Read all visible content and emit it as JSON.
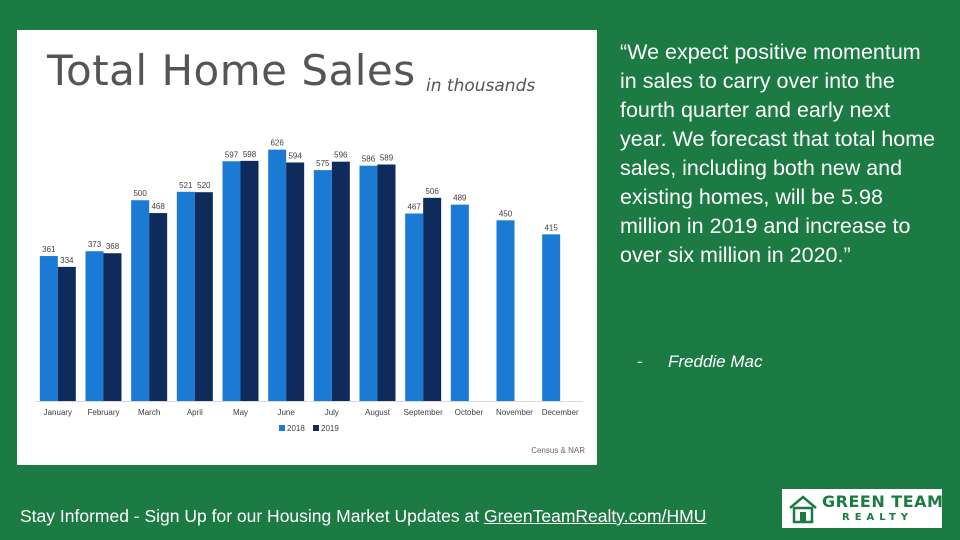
{
  "chart_data": {
    "type": "bar",
    "title": "Total Home Sales",
    "subtitle": "in thousands",
    "categories": [
      "January",
      "February",
      "March",
      "April",
      "May",
      "June",
      "July",
      "August",
      "September",
      "October",
      "November",
      "December"
    ],
    "series": [
      {
        "name": "2018",
        "color": "#1a7ad4",
        "values": [
          361,
          373,
          500,
          521,
          597,
          626,
          575,
          586,
          467,
          489,
          450,
          415
        ]
      },
      {
        "name": "2019",
        "color": "#0f2b5c",
        "values": [
          334,
          368,
          468,
          520,
          598,
          594,
          596,
          589,
          506,
          null,
          null,
          null
        ]
      }
    ],
    "ylim": [
      0,
      650
    ],
    "grid": false,
    "legend": "bottom",
    "source": "Census & NAR"
  },
  "quote": {
    "text": "“We expect positive momentum in sales to carry over into the fourth quarter and early next year. We forecast that total home sales, including both new and existing homes, will be 5.98 million in 2019 and increase to over six million in 2020.”",
    "dash": "-",
    "attribution": "Freddie Mac"
  },
  "footer": {
    "text": "Stay Informed - Sign Up for our Housing Market Updates at ",
    "link": "GreenTeamRealty.com/HMU"
  },
  "logo": {
    "line1": "GREEN TEAM",
    "line2": "REALTY"
  },
  "colors": {
    "background": "#1c7a43",
    "text": "#ffffff"
  }
}
